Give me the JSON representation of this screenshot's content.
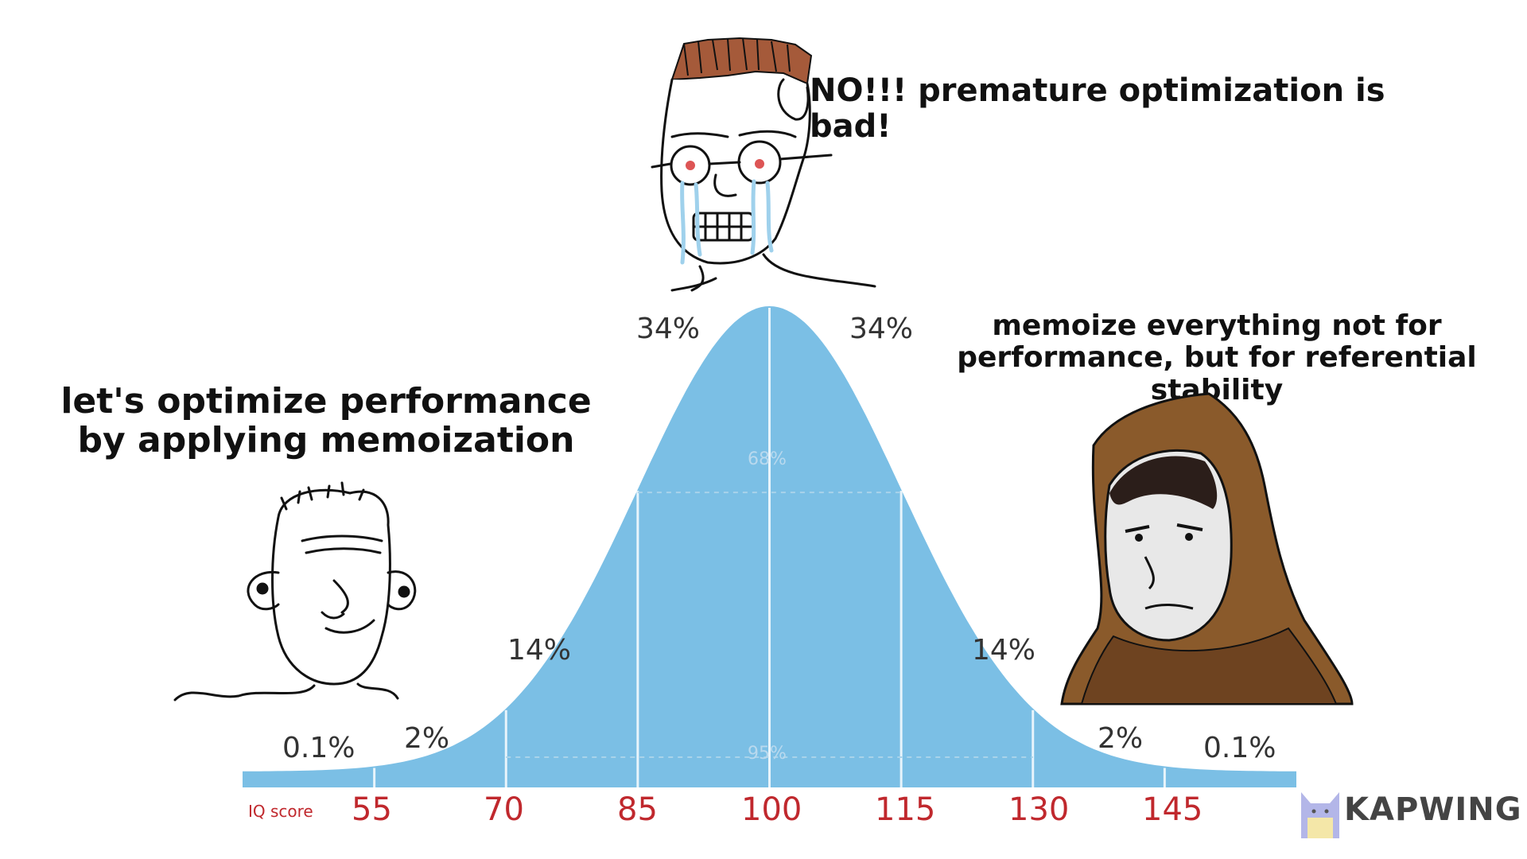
{
  "captions": {
    "left": "let's optimize performance by applying memoization",
    "top": "NO!!! premature optimization is bad!",
    "right": "memoize everything not for performance, but for referential stability"
  },
  "chart_data": {
    "type": "area",
    "title": "",
    "xlabel": "IQ score",
    "x_ticks": [
      55,
      70,
      85,
      100,
      115,
      130,
      145
    ],
    "segments": [
      {
        "range": "<55",
        "label": "0.1%"
      },
      {
        "range": "55-70",
        "label": "2%"
      },
      {
        "range": "70-85",
        "label": "14%"
      },
      {
        "range": "85-100",
        "label": "34%"
      },
      {
        "range": "100-115",
        "label": "34%"
      },
      {
        "range": "115-130",
        "label": "14%"
      },
      {
        "range": "130-145",
        "label": "2%"
      },
      {
        "range": ">145",
        "label": "0.1%"
      }
    ],
    "inner_labels": {
      "one_sd": "68%",
      "two_sd": "95%"
    },
    "curve": {
      "mean": 100,
      "sd": 15
    },
    "fill_color": "#7bbfe5",
    "tick_color": "#c0282d"
  },
  "brand": {
    "name": "KAPWING"
  },
  "colors": {
    "curve": "#7bbfe5",
    "ticks": "#c0282d",
    "hood": "#8a5a2b",
    "hair": "#a55a3a"
  },
  "icons": [
    "wojak-simple-face",
    "wojak-crying-glasses-face",
    "hooded-monk-face",
    "kapwing-cat-logo"
  ]
}
